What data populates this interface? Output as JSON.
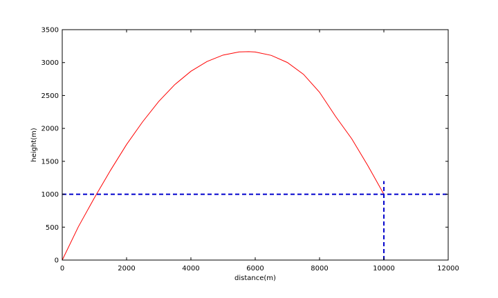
{
  "chart_data": {
    "type": "line",
    "title": "",
    "xlabel": "distance(m)",
    "ylabel": "height(m)",
    "xlim": [
      0,
      12000
    ],
    "ylim": [
      0,
      3500
    ],
    "xticks": [
      0,
      2000,
      4000,
      6000,
      8000,
      10000,
      12000
    ],
    "yticks": [
      0,
      500,
      1000,
      1500,
      2000,
      2500,
      3000,
      3500
    ],
    "grid": false,
    "series": [
      {
        "color": "#ff0000",
        "style": "solid",
        "x": [
          0,
          500,
          1000,
          1500,
          2000,
          2500,
          3000,
          3500,
          4000,
          4500,
          5000,
          5500,
          5800,
          6000,
          6500,
          7000,
          7500,
          8000,
          8500,
          9000,
          9500,
          10000
        ],
        "y": [
          0,
          505,
          946,
          1363,
          1756,
          2101,
          2410,
          2666,
          2868,
          3016,
          3114,
          3162,
          3166,
          3161,
          3109,
          3001,
          2822,
          2549,
          2181,
          1843,
          1436,
          1000
        ]
      }
    ],
    "reference_lines": [
      {
        "orientation": "horizontal",
        "y": 1000,
        "color": "#0000cc",
        "style": "dashed"
      },
      {
        "orientation": "vertical",
        "x": 10000,
        "y_range": [
          0,
          1200
        ],
        "color": "#0000cc",
        "style": "dashed"
      }
    ]
  }
}
